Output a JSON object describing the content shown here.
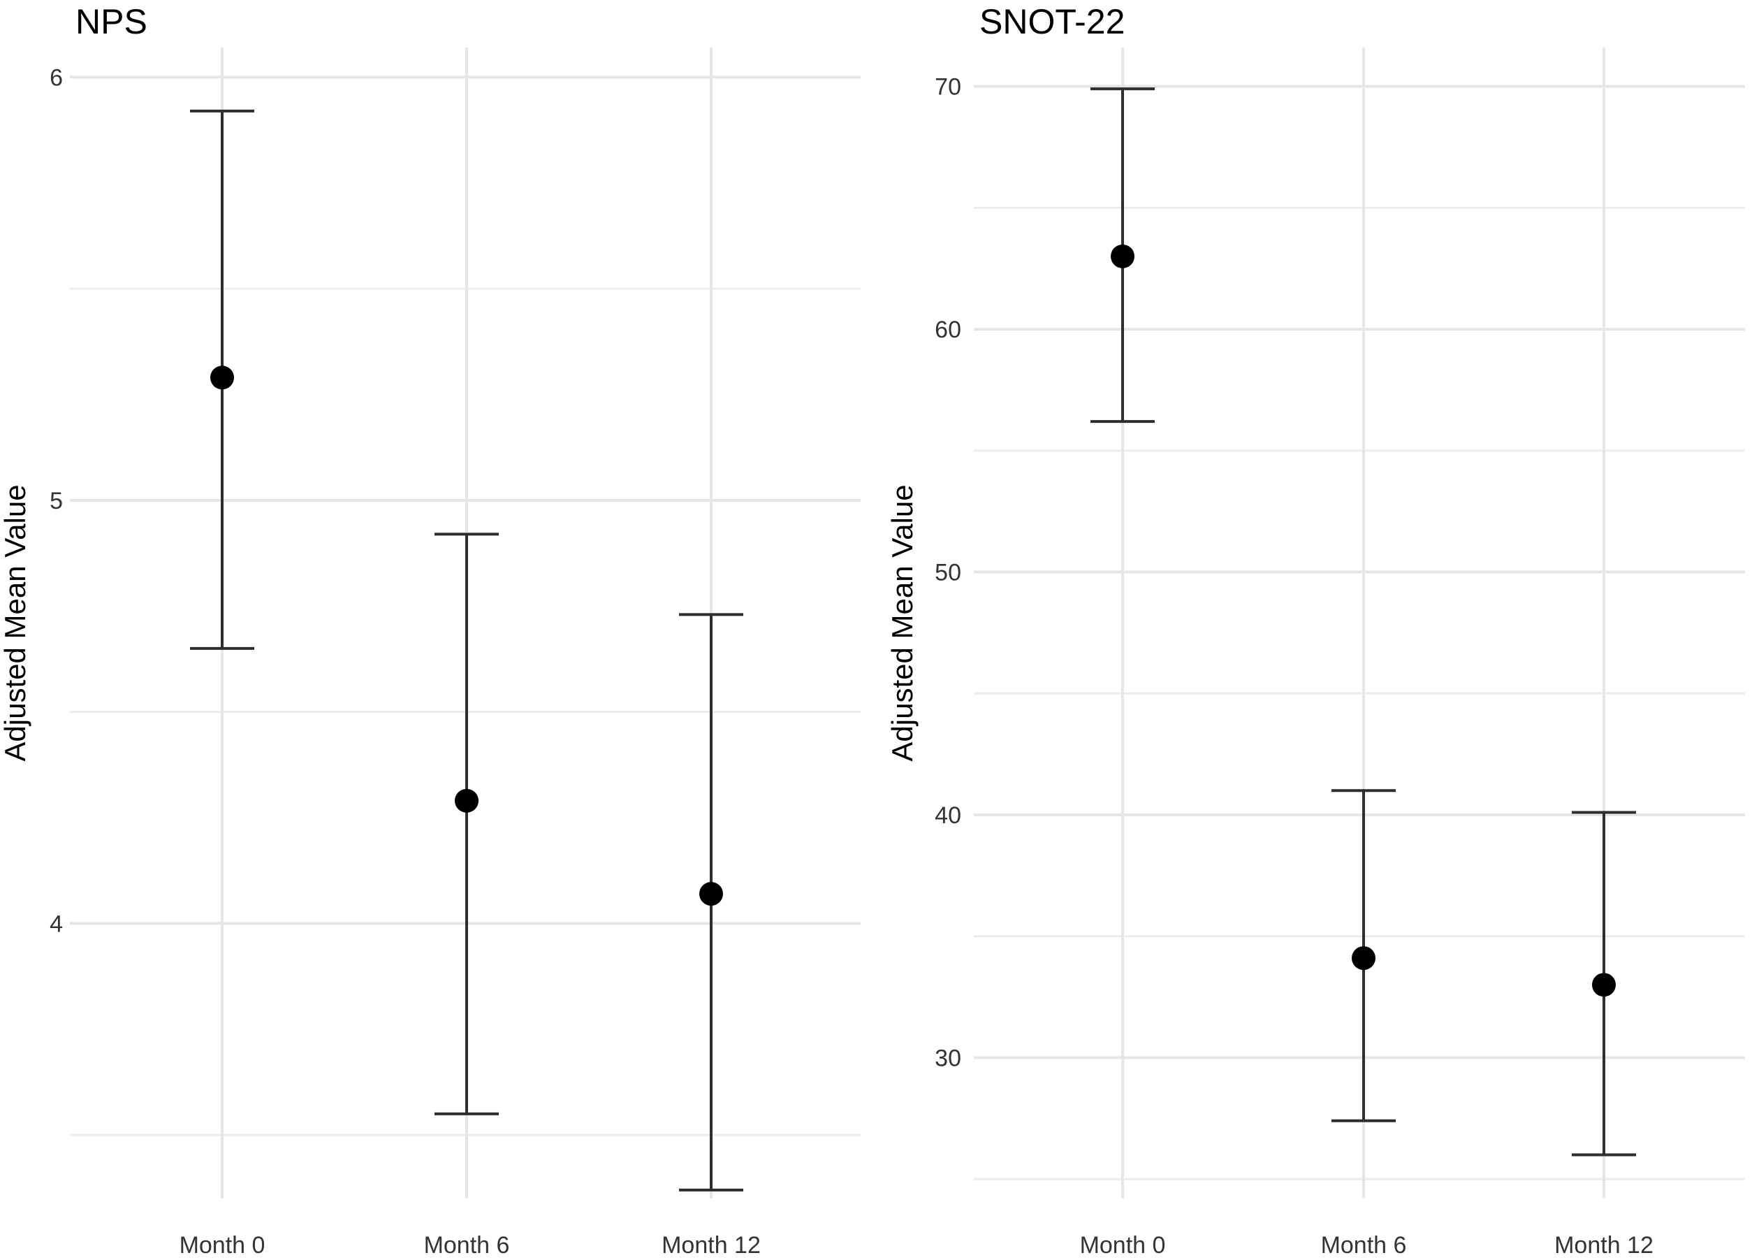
{
  "chart_data": [
    {
      "type": "errorbar",
      "title": "NPS",
      "xlabel": "",
      "ylabel": "Adjusted Mean Value",
      "categories": [
        "Month 0",
        "Month 6",
        "Month 12"
      ],
      "values": [
        5.29,
        4.29,
        4.07
      ],
      "ci_lower": [
        4.65,
        3.55,
        3.37
      ],
      "ci_upper": [
        5.92,
        4.92,
        4.73
      ],
      "ylim": [
        3.35,
        6.07
      ],
      "yticks": [
        4,
        5,
        6
      ],
      "ytick_labels": [
        "4",
        "5",
        "6"
      ],
      "ygrid_minor": [
        3.5,
        4.5,
        5.5
      ],
      "grid": true
    },
    {
      "type": "errorbar",
      "title": "SNOT-22",
      "xlabel": "",
      "ylabel": "Adjusted Mean Value",
      "categories": [
        "Month 0",
        "Month 6",
        "Month 12"
      ],
      "values": [
        63.0,
        34.1,
        33.0
      ],
      "ci_lower": [
        56.2,
        27.4,
        26.0
      ],
      "ci_upper": [
        69.9,
        41.0,
        40.1
      ],
      "ylim": [
        24.2,
        71.6
      ],
      "yticks": [
        30,
        40,
        50,
        60,
        70
      ],
      "ytick_labels": [
        "30",
        "40",
        "50",
        "60",
        "70"
      ],
      "ygrid_minor": [
        25,
        35,
        45,
        55,
        65
      ],
      "grid": true
    }
  ]
}
